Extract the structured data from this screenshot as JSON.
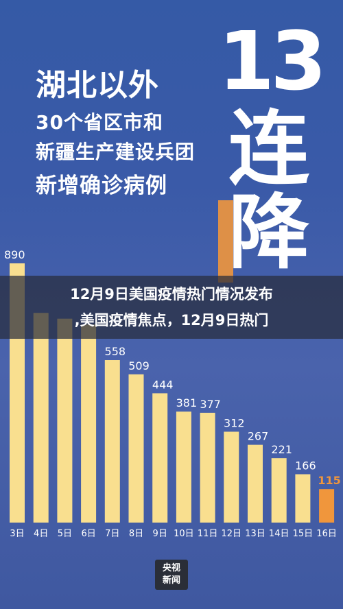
{
  "headline": {
    "line1": "湖北以外",
    "line2": "30个省区市和",
    "line3": "新疆生产建设兵团",
    "line4": "新增确诊病例"
  },
  "badge": {
    "number": "13",
    "char1": "连",
    "char2": "降"
  },
  "banner": {
    "line1": "12月9日美国疫情热门情况发布",
    "line2": ",美国疫情焦点，12月9日热门"
  },
  "logo": {
    "line1": "央视",
    "line2": "新闻"
  },
  "colors": {
    "bar": "#f9df8f",
    "highlight": "#f0963c",
    "background": "#3a5aa8"
  },
  "chart_data": {
    "type": "bar",
    "categories": [
      "3日",
      "4日",
      "5日",
      "6日",
      "7日",
      "8日",
      "9日",
      "10日",
      "11日",
      "12日",
      "13日",
      "14日",
      "15日",
      "16日"
    ],
    "values": [
      890,
      720,
      700,
      680,
      558,
      509,
      444,
      381,
      377,
      312,
      267,
      221,
      166,
      115
    ],
    "value_labels": [
      "890",
      "",
      "",
      "",
      "558",
      "509",
      "444",
      "381",
      "377",
      "312",
      "267",
      "221",
      "166",
      "115"
    ],
    "highlight_index": 13,
    "ylim": [
      0,
      890
    ],
    "title": "",
    "xlabel": "",
    "ylabel": ""
  }
}
